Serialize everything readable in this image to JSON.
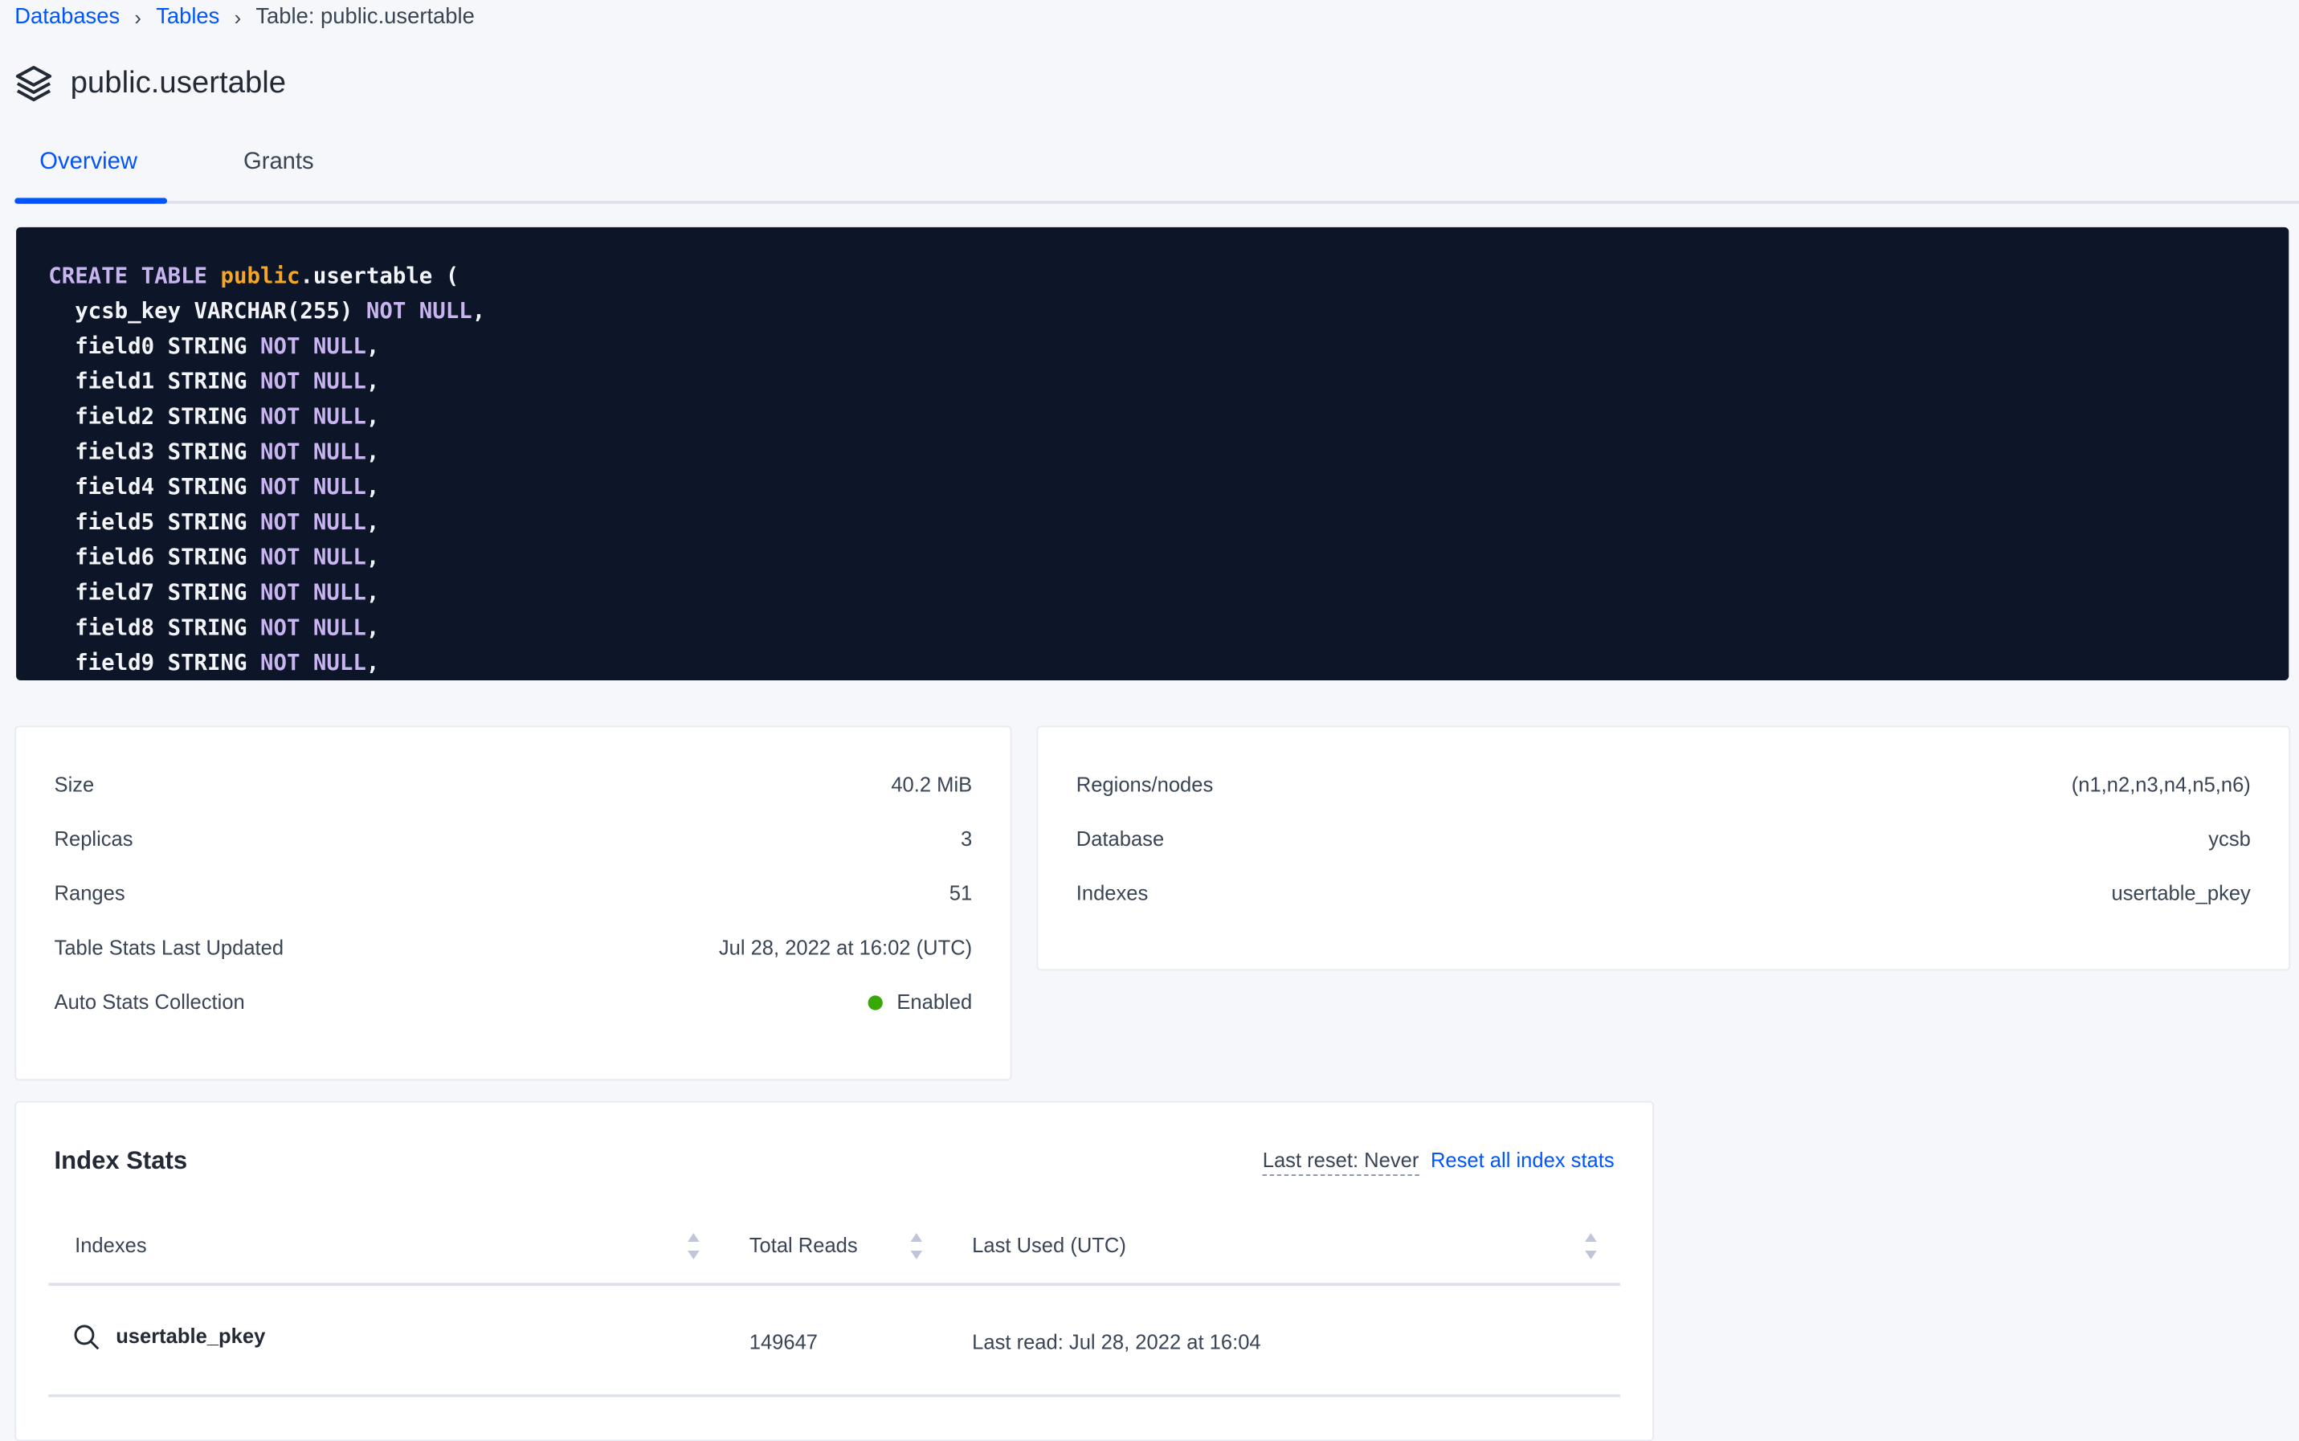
{
  "breadcrumb": [
    {
      "label": "Databases"
    },
    {
      "label": "Tables"
    },
    {
      "label": "Table: public.usertable"
    }
  ],
  "page_title": "public.usertable",
  "tabs": [
    {
      "label": "Overview",
      "active": true
    },
    {
      "label": "Grants",
      "active": false
    }
  ],
  "code_lines": [
    [
      [
        "CREATE TABLE ",
        "kw"
      ],
      [
        "public",
        "sch"
      ],
      [
        ".usertable (",
        ""
      ]
    ],
    [
      [
        "  ycsb_key VARCHAR(255) ",
        ""
      ],
      [
        "NOT NULL",
        "kw"
      ],
      [
        ",",
        ""
      ]
    ],
    [
      [
        "  field0 STRING ",
        ""
      ],
      [
        "NOT NULL",
        "kw"
      ],
      [
        ",",
        ""
      ]
    ],
    [
      [
        "  field1 STRING ",
        ""
      ],
      [
        "NOT NULL",
        "kw"
      ],
      [
        ",",
        ""
      ]
    ],
    [
      [
        "  field2 STRING ",
        ""
      ],
      [
        "NOT NULL",
        "kw"
      ],
      [
        ",",
        ""
      ]
    ],
    [
      [
        "  field3 STRING ",
        ""
      ],
      [
        "NOT NULL",
        "kw"
      ],
      [
        ",",
        ""
      ]
    ],
    [
      [
        "  field4 STRING ",
        ""
      ],
      [
        "NOT NULL",
        "kw"
      ],
      [
        ",",
        ""
      ]
    ],
    [
      [
        "  field5 STRING ",
        ""
      ],
      [
        "NOT NULL",
        "kw"
      ],
      [
        ",",
        ""
      ]
    ],
    [
      [
        "  field6 STRING ",
        ""
      ],
      [
        "NOT NULL",
        "kw"
      ],
      [
        ",",
        ""
      ]
    ],
    [
      [
        "  field7 STRING ",
        ""
      ],
      [
        "NOT NULL",
        "kw"
      ],
      [
        ",",
        ""
      ]
    ],
    [
      [
        "  field8 STRING ",
        ""
      ],
      [
        "NOT NULL",
        "kw"
      ],
      [
        ",",
        ""
      ]
    ],
    [
      [
        "  field9 STRING ",
        ""
      ],
      [
        "NOT NULL",
        "kw"
      ],
      [
        ",",
        ""
      ]
    ]
  ],
  "summary_left": [
    {
      "label": "Size",
      "value": "40.2 MiB"
    },
    {
      "label": "Replicas",
      "value": "3"
    },
    {
      "label": "Ranges",
      "value": "51"
    },
    {
      "label": "Table Stats Last Updated",
      "value": "Jul 28, 2022 at 16:02 (UTC)"
    },
    {
      "label": "Auto Stats Collection",
      "value": "Enabled",
      "status_color": "#37a806"
    }
  ],
  "summary_right": [
    {
      "label": "Regions/nodes",
      "value": "(n1,n2,n3,n4,n5,n6)"
    },
    {
      "label": "Database",
      "value": "ycsb"
    },
    {
      "label": "Indexes",
      "value": "usertable_pkey"
    }
  ],
  "index_stats": {
    "title": "Index Stats",
    "last_reset": "Last reset: Never",
    "reset_link": "Reset all index stats",
    "columns": [
      "Indexes",
      "Total Reads",
      "Last Used (UTC)"
    ],
    "rows": [
      {
        "index": "usertable_pkey",
        "total_reads": "149647",
        "last_used": "Last read: Jul 28, 2022 at 16:04",
        "icon": "search-icon"
      }
    ]
  },
  "colors": {
    "accent": "#0055ff",
    "code_bg": "#0d1529",
    "keyword": "#c8b5f0",
    "schema": "#f5a623"
  }
}
